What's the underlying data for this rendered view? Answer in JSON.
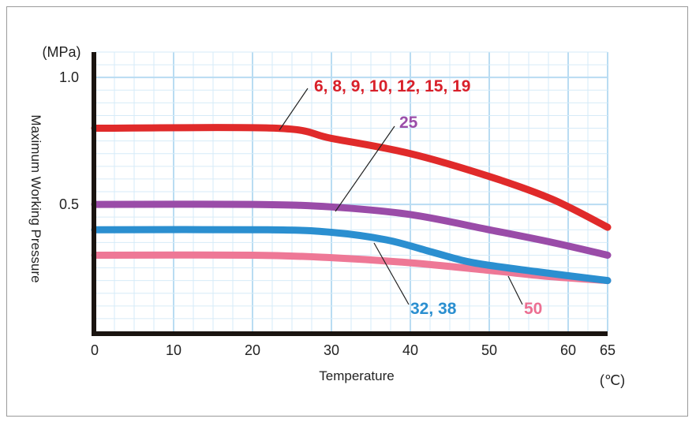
{
  "chart_data": {
    "type": "line",
    "xlabel": "Temperature",
    "x_unit": "(℃)",
    "ylabel": "Maximum Working Pressure",
    "y_unit": "(MPa)",
    "xlim": [
      0,
      65
    ],
    "ylim": [
      0,
      1.1
    ],
    "x_ticks": [
      0,
      10,
      20,
      30,
      40,
      50,
      60,
      65
    ],
    "x_tick_labels": [
      "0",
      "10",
      "20",
      "30",
      "40",
      "50",
      "60",
      "65"
    ],
    "y_ticks": [
      0.5,
      1.0
    ],
    "y_tick_labels": [
      "0.5",
      "1.0"
    ],
    "grid": true,
    "series": [
      {
        "name": "6, 8, 9, 10, 12, 15, 19",
        "color": "#e02a2a",
        "label_color": "#d8202a",
        "points": [
          [
            0,
            0.8
          ],
          [
            23,
            0.8
          ],
          [
            30,
            0.76
          ],
          [
            40,
            0.7
          ],
          [
            50,
            0.61
          ],
          [
            58,
            0.52
          ],
          [
            65,
            0.41
          ]
        ]
      },
      {
        "name": "25",
        "color": "#9a4ca8",
        "label_color": "#9b4ea9",
        "points": [
          [
            0,
            0.5
          ],
          [
            20,
            0.5
          ],
          [
            30,
            0.49
          ],
          [
            40,
            0.46
          ],
          [
            50,
            0.4
          ],
          [
            58,
            0.35
          ],
          [
            65,
            0.3
          ]
        ]
      },
      {
        "name": "32, 38",
        "color": "#2b8fd0",
        "label_color": "#2a8fd0",
        "points": [
          [
            0,
            0.4
          ],
          [
            22,
            0.4
          ],
          [
            30,
            0.39
          ],
          [
            37,
            0.36
          ],
          [
            43,
            0.31
          ],
          [
            48,
            0.27
          ],
          [
            56,
            0.235
          ],
          [
            65,
            0.2
          ]
        ]
      },
      {
        "name": "50",
        "color": "#ee7896",
        "label_color": "#ec6f92",
        "points": [
          [
            0,
            0.3
          ],
          [
            20,
            0.3
          ],
          [
            30,
            0.29
          ],
          [
            40,
            0.27
          ],
          [
            50,
            0.24
          ],
          [
            58,
            0.215
          ],
          [
            65,
            0.2
          ]
        ]
      }
    ]
  }
}
